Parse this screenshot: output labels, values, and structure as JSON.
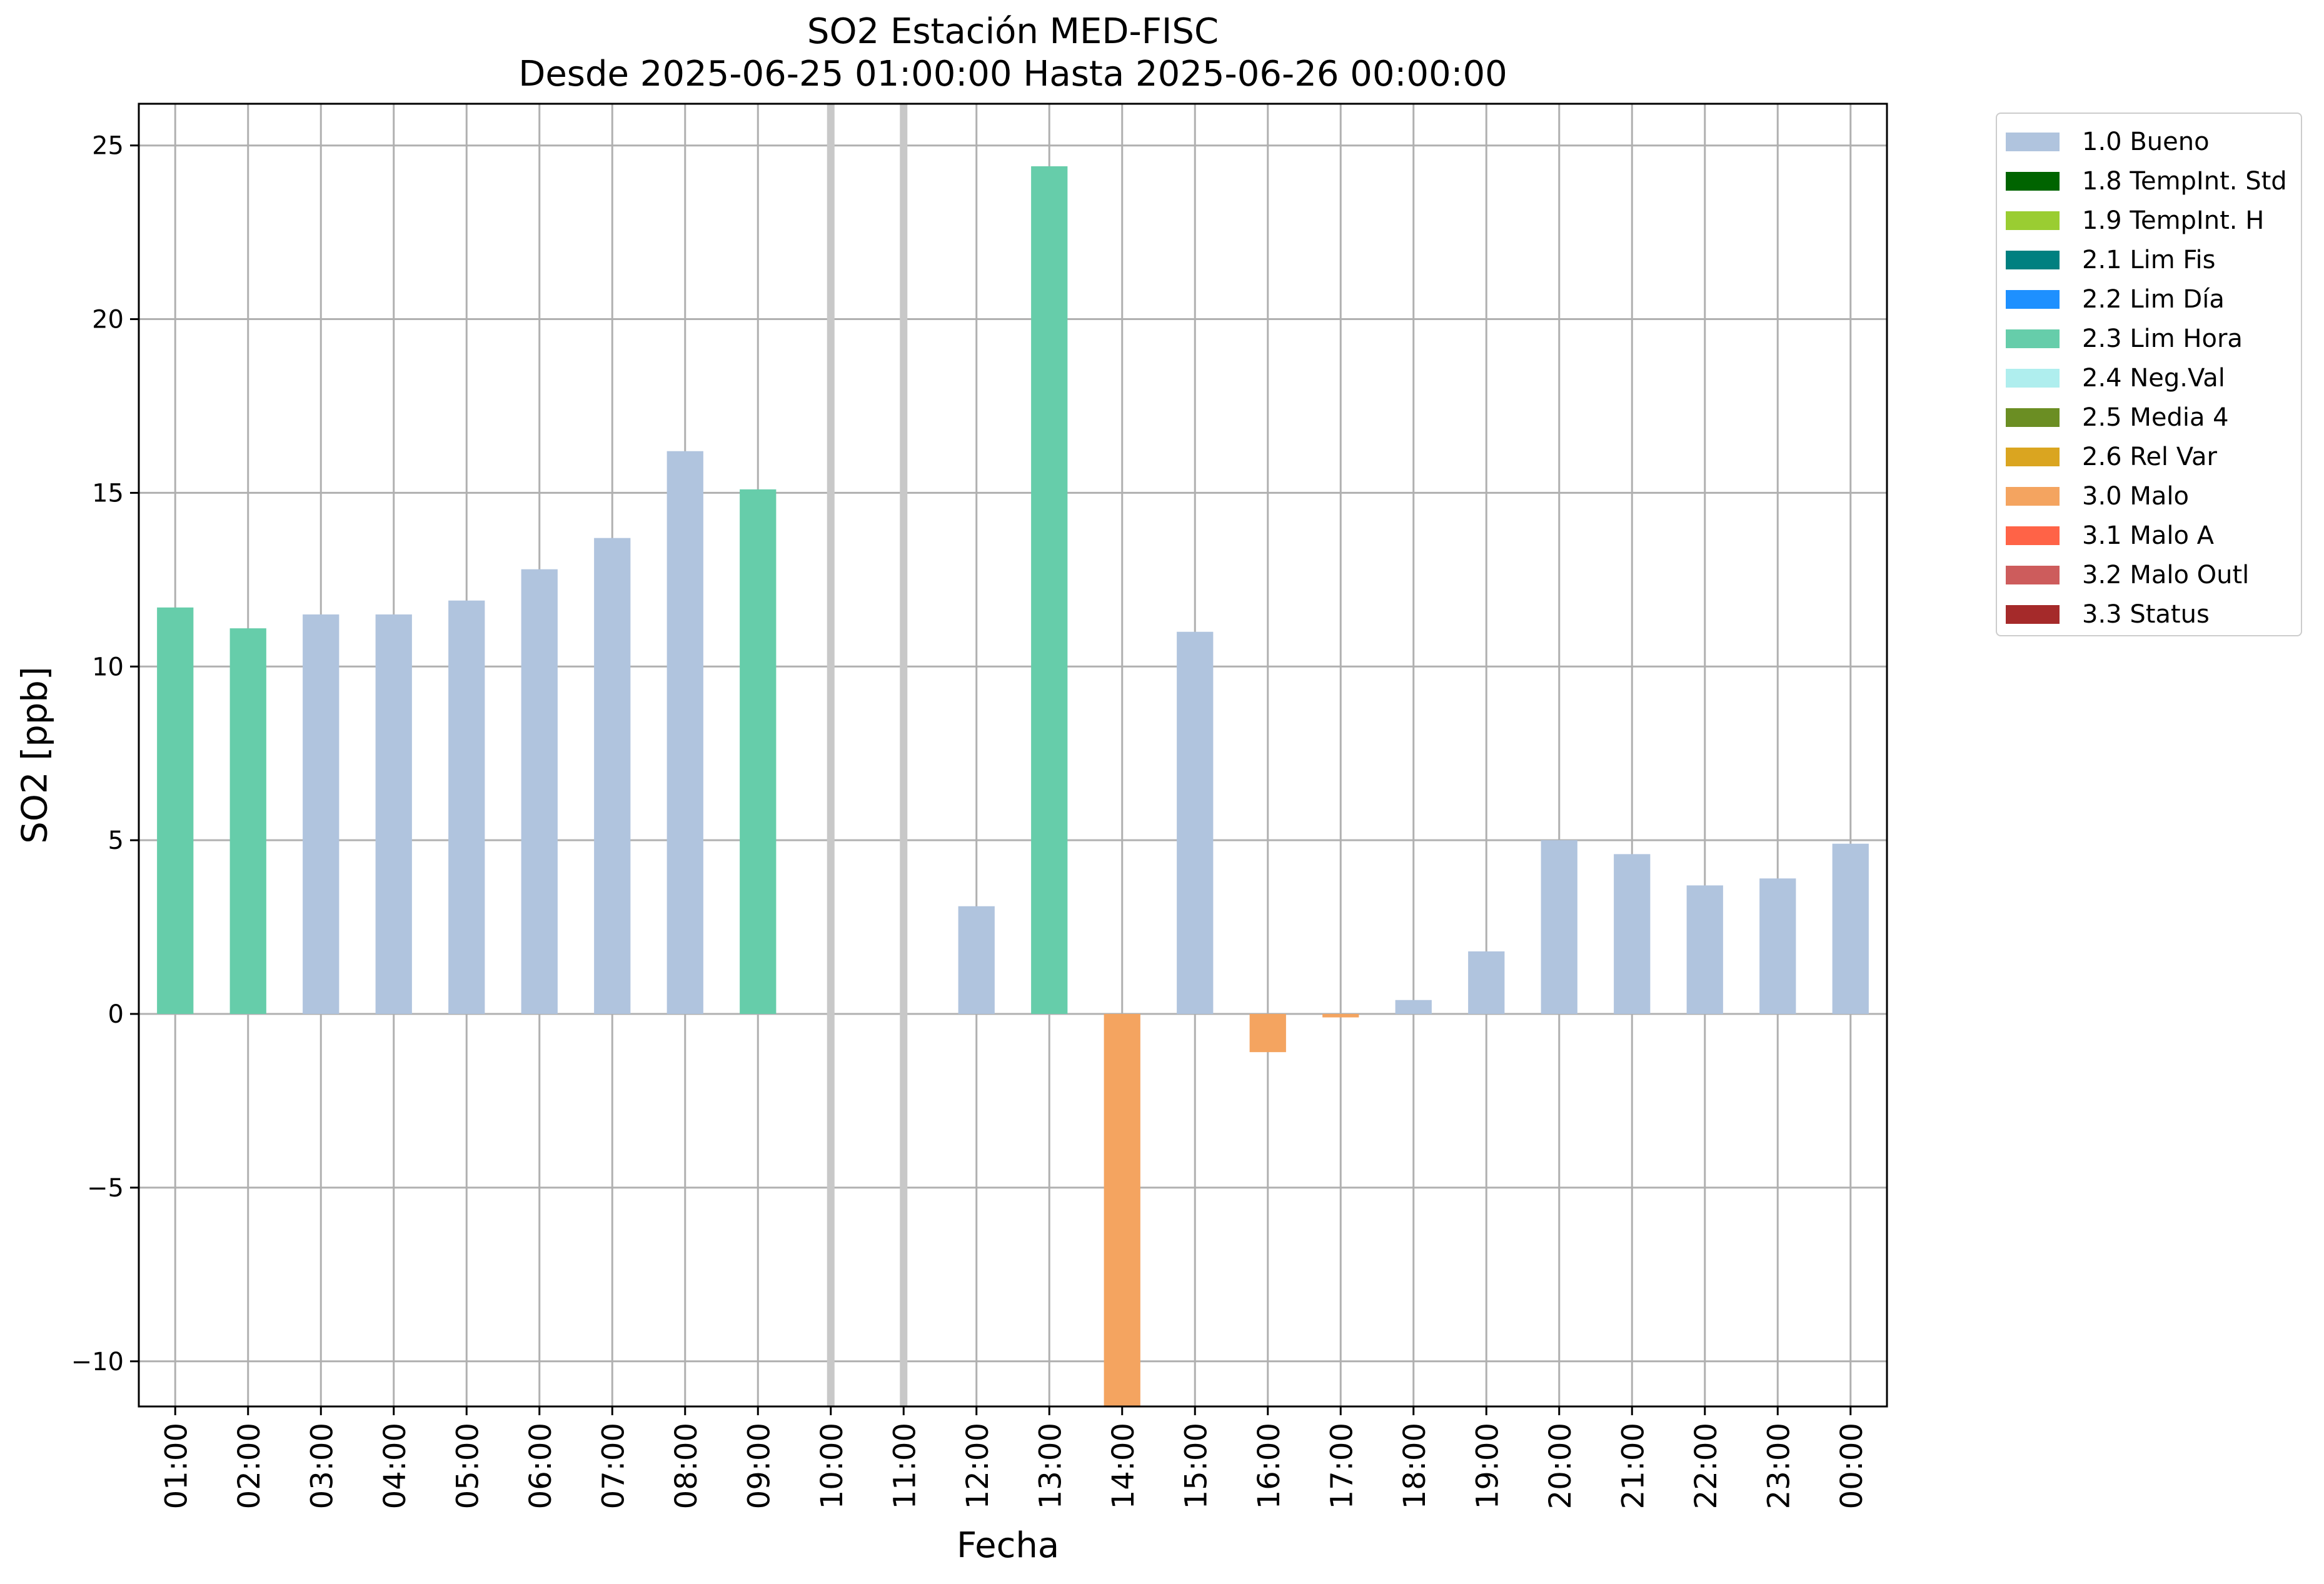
{
  "chart_data": {
    "type": "bar",
    "title": "SO2 Estación MED-FISC",
    "subtitle": "Desde 2025-06-25 01:00:00 Hasta 2025-06-26 00:00:00",
    "xlabel": "Fecha",
    "ylabel": "SO2 [ppb]",
    "ylim": [
      -11.3,
      26.2
    ],
    "yticks": [
      -10,
      -5,
      0,
      5,
      10,
      15,
      20,
      25
    ],
    "ytick_labels": [
      "−10",
      "−5",
      "0",
      "5",
      "10",
      "15",
      "20",
      "25"
    ],
    "grid": true,
    "legend_position": "outside-top-right",
    "categories": [
      "01:00",
      "02:00",
      "03:00",
      "04:00",
      "05:00",
      "06:00",
      "07:00",
      "08:00",
      "09:00",
      "10:00",
      "11:00",
      "12:00",
      "13:00",
      "14:00",
      "15:00",
      "16:00",
      "17:00",
      "18:00",
      "19:00",
      "20:00",
      "21:00",
      "22:00",
      "23:00",
      "00:00"
    ],
    "values": [
      11.7,
      11.1,
      11.5,
      11.5,
      11.9,
      12.8,
      13.7,
      16.2,
      15.1,
      null,
      null,
      3.1,
      24.4,
      -11.3,
      11.0,
      -1.1,
      -0.1,
      0.4,
      1.8,
      5.0,
      4.6,
      3.7,
      3.9,
      4.9
    ],
    "flags": [
      "2.3 Lim Hora",
      "2.3 Lim Hora",
      "1.0 Bueno",
      "1.0 Bueno",
      "1.0 Bueno",
      "1.0 Bueno",
      "1.0 Bueno",
      "1.0 Bueno",
      "2.3 Lim Hora",
      null,
      null,
      "1.0 Bueno",
      "2.3 Lim Hora",
      "3.0 Malo",
      "1.0 Bueno",
      "3.0 Malo",
      "3.0 Malo",
      "1.0 Bueno",
      "1.0 Bueno",
      "1.0 Bueno",
      "1.0 Bueno",
      "1.0 Bueno",
      "1.0 Bueno",
      "1.0 Bueno"
    ],
    "missing_markers": [
      "10:00",
      "11:00"
    ],
    "missing_marker_color": "#c8c8c8",
    "legend": [
      {
        "label": "1.0 Bueno",
        "color": "#b0c4de"
      },
      {
        "label": "1.8 TempInt. Std",
        "color": "#006400"
      },
      {
        "label": "1.9 TempInt. H",
        "color": "#9acd32"
      },
      {
        "label": "2.1 Lim Fis",
        "color": "#008080"
      },
      {
        "label": "2.2 Lim Día",
        "color": "#1e90ff"
      },
      {
        "label": "2.3 Lim Hora",
        "color": "#66cdaa"
      },
      {
        "label": "2.4 Neg.Val",
        "color": "#afeeee"
      },
      {
        "label": "2.5 Media 4",
        "color": "#6b8e23"
      },
      {
        "label": "2.6 Rel Var",
        "color": "#daa520"
      },
      {
        "label": "3.0 Malo",
        "color": "#f4a460"
      },
      {
        "label": "3.1 Malo A",
        "color": "#ff6347"
      },
      {
        "label": "3.2 Malo Outl",
        "color": "#cd5c5c"
      },
      {
        "label": "3.3 Status",
        "color": "#a52a2a"
      }
    ],
    "grid_color": "#b0b0b0"
  }
}
